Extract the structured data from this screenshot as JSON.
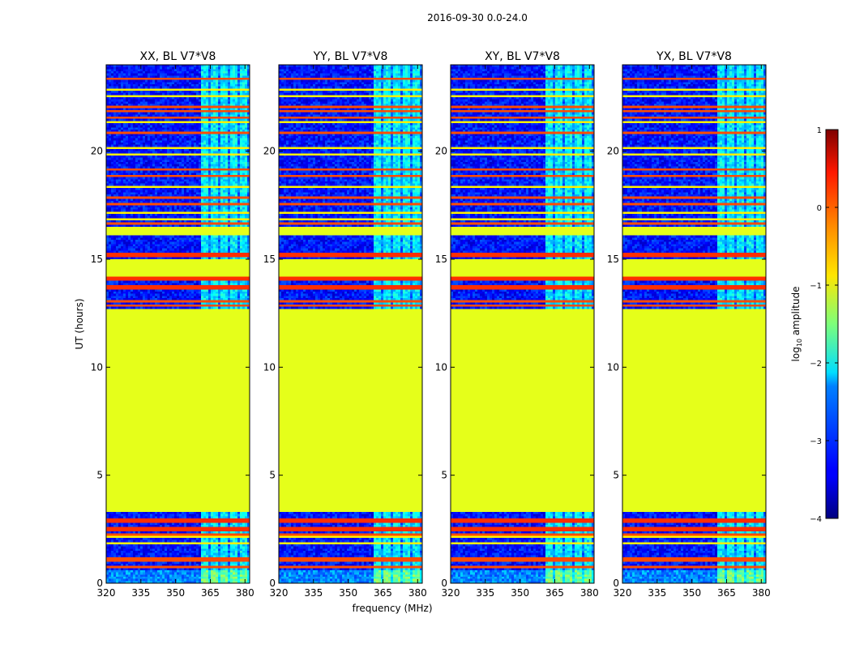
{
  "chart_data": {
    "type": "heatmap",
    "suptitle": "2016-09-30 0.0-24.0",
    "xlabel": "frequency (MHz)",
    "ylabel": "UT (hours)",
    "xlim": [
      320,
      382
    ],
    "ylim": [
      0,
      24
    ],
    "xticks": [
      320,
      335,
      350,
      365,
      380
    ],
    "yticks": [
      0,
      5,
      10,
      15,
      20
    ],
    "panels": [
      {
        "title": "XX, BL V7*V8"
      },
      {
        "title": "YY, BL V7*V8"
      },
      {
        "title": "XY, BL V7*V8"
      },
      {
        "title": "YX, BL V7*V8"
      }
    ],
    "colorbar": {
      "label": "log",
      "label_sub": "10",
      "label_suffix": " amplitude",
      "colormap": "jet",
      "range": [
        -4,
        1
      ],
      "ticks": [
        1,
        0,
        -1,
        -2,
        -3,
        -4
      ],
      "tick_labels": [
        "1",
        "0",
        "−1",
        "−2",
        "−3",
        "−4"
      ]
    },
    "structure": {
      "flagged_value": -1.0,
      "flagged_intervals_hours": [
        [
          3.3,
          12.7
        ],
        [
          14.2,
          15.0
        ],
        [
          16.1,
          16.5
        ]
      ],
      "high_intervals_hours": [
        [
          2.45,
          2.6
        ],
        [
          2.85,
          3.0
        ],
        [
          13.6,
          13.85
        ],
        [
          14.0,
          14.2
        ],
        [
          15.1,
          15.3
        ]
      ],
      "horizontal_lines_hours": [
        0.75,
        1.05,
        1.15,
        1.9,
        2.1,
        2.25,
        12.8,
        13.0,
        16.7,
        16.9,
        17.2,
        17.5,
        17.8,
        18.4,
        18.8,
        19.2,
        19.9,
        20.1,
        20.9,
        21.3,
        21.5,
        21.8,
        22.0,
        22.5,
        22.8,
        23.4
      ],
      "bright_band_mhz": [
        362,
        381
      ],
      "background_value": -3.3,
      "bright_value": -2.2
    }
  }
}
